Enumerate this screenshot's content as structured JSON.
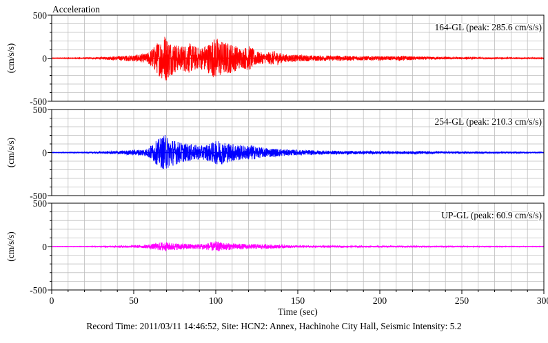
{
  "chart_data": {
    "type": "line",
    "title": "Acceleration",
    "x_range": [
      0,
      300
    ],
    "x_ticks": [
      0,
      50,
      100,
      150,
      200,
      250,
      300
    ],
    "x_tick_labels": [
      "0",
      "50",
      "100",
      "150",
      "200",
      "250",
      "300"
    ],
    "xlabel": "Time (sec)",
    "grid": true,
    "panels": [
      {
        "ylabel": "(cm/s/s)",
        "ylim": [
          -500,
          500
        ],
        "y_ticks": [
          500,
          0,
          -500
        ],
        "y_tick_labels": [
          "500",
          "0",
          "-500"
        ],
        "annotation": "164-GL (peak: 285.6 cm/s/s)",
        "color": "#ff0000",
        "peak": 285.6,
        "envelope": [
          [
            0,
            3
          ],
          [
            20,
            6
          ],
          [
            30,
            12
          ],
          [
            40,
            25
          ],
          [
            50,
            38
          ],
          [
            58,
            55
          ],
          [
            62,
            130
          ],
          [
            66,
            220
          ],
          [
            69,
            285.6
          ],
          [
            72,
            210
          ],
          [
            78,
            140
          ],
          [
            84,
            175
          ],
          [
            90,
            120
          ],
          [
            96,
            180
          ],
          [
            100,
            250
          ],
          [
            104,
            200
          ],
          [
            110,
            170
          ],
          [
            116,
            110
          ],
          [
            120,
            150
          ],
          [
            125,
            80
          ],
          [
            130,
            60
          ],
          [
            136,
            85
          ],
          [
            142,
            45
          ],
          [
            150,
            40
          ],
          [
            160,
            32
          ],
          [
            175,
            30
          ],
          [
            190,
            26
          ],
          [
            205,
            22
          ],
          [
            215,
            28
          ],
          [
            220,
            20
          ],
          [
            240,
            14
          ],
          [
            260,
            10
          ],
          [
            280,
            8
          ],
          [
            300,
            6
          ]
        ]
      },
      {
        "ylabel": "(cm/s/s)",
        "ylim": [
          -500,
          500
        ],
        "y_ticks": [
          500,
          0,
          -500
        ],
        "y_tick_labels": [
          "500",
          "0",
          "-500"
        ],
        "annotation": "254-GL (peak: 210.3 cm/s/s)",
        "color": "#0000ff",
        "peak": 210.3,
        "envelope": [
          [
            0,
            3
          ],
          [
            20,
            5
          ],
          [
            30,
            10
          ],
          [
            40,
            20
          ],
          [
            50,
            30
          ],
          [
            58,
            45
          ],
          [
            62,
            110
          ],
          [
            66,
            170
          ],
          [
            69,
            210.3
          ],
          [
            73,
            160
          ],
          [
            80,
            110
          ],
          [
            86,
            95
          ],
          [
            92,
            80
          ],
          [
            97,
            110
          ],
          [
            102,
            150
          ],
          [
            106,
            120
          ],
          [
            112,
            100
          ],
          [
            118,
            80
          ],
          [
            122,
            90
          ],
          [
            127,
            60
          ],
          [
            132,
            55
          ],
          [
            138,
            45
          ],
          [
            145,
            35
          ],
          [
            155,
            28
          ],
          [
            170,
            22
          ],
          [
            190,
            18
          ],
          [
            210,
            15
          ],
          [
            225,
            18
          ],
          [
            240,
            12
          ],
          [
            260,
            10
          ],
          [
            280,
            8
          ],
          [
            300,
            7
          ]
        ]
      },
      {
        "ylabel": "(cm/s/s)",
        "ylim": [
          -500,
          500
        ],
        "y_ticks": [
          500,
          0,
          -500
        ],
        "y_tick_labels": [
          "500",
          "0",
          "-500"
        ],
        "annotation": "UP-GL (peak: 60.9 cm/s/s)",
        "color": "#ff00ff",
        "peak": 60.9,
        "envelope": [
          [
            0,
            2
          ],
          [
            20,
            3
          ],
          [
            30,
            6
          ],
          [
            40,
            10
          ],
          [
            50,
            14
          ],
          [
            58,
            20
          ],
          [
            64,
            40
          ],
          [
            68,
            55
          ],
          [
            72,
            45
          ],
          [
            80,
            35
          ],
          [
            88,
            30
          ],
          [
            95,
            40
          ],
          [
            100,
            60.9
          ],
          [
            104,
            45
          ],
          [
            110,
            38
          ],
          [
            118,
            30
          ],
          [
            125,
            28
          ],
          [
            135,
            22
          ],
          [
            145,
            16
          ],
          [
            160,
            12
          ],
          [
            180,
            10
          ],
          [
            200,
            8
          ],
          [
            220,
            8
          ],
          [
            240,
            6
          ],
          [
            260,
            5
          ],
          [
            280,
            4
          ],
          [
            300,
            3
          ]
        ]
      }
    ]
  },
  "caption": "Record Time: 2011/03/11 14:46:52, Site: HCN2: Annex, Hachinohe City Hall, Seismic Intensity: 5.2"
}
